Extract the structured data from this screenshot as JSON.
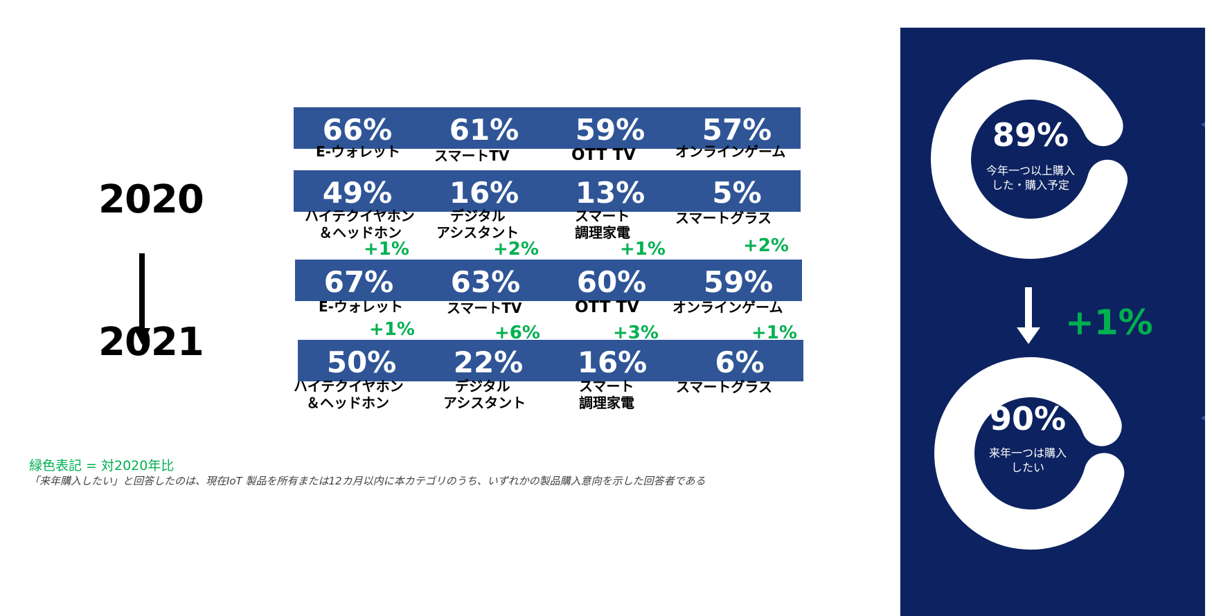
{
  "years": {
    "from": "2020",
    "to": "2021"
  },
  "tiles_2020": [
    {
      "pct": "66%",
      "label": [
        "E-ウォレット"
      ]
    },
    {
      "pct": "61%",
      "label": [
        "スマートTV"
      ]
    },
    {
      "pct": "59%",
      "label": [
        "OTT TV"
      ]
    },
    {
      "pct": "57%",
      "label": [
        "オンラインゲーム"
      ]
    },
    {
      "pct": "49%",
      "label": [
        "ハイテクイヤホン",
        "＆ヘッドホン"
      ]
    },
    {
      "pct": "16%",
      "label": [
        "デジタル",
        "アシスタント"
      ]
    },
    {
      "pct": "13%",
      "label": [
        "スマート",
        "調理家電"
      ]
    },
    {
      "pct": "5%",
      "label": [
        "スマートグラス"
      ]
    }
  ],
  "tiles_2021": [
    {
      "pct": "67%",
      "label": [
        "E-ウォレット"
      ],
      "delta": "+1%"
    },
    {
      "pct": "63%",
      "label": [
        "スマートTV"
      ],
      "delta": "+2%"
    },
    {
      "pct": "60%",
      "label": [
        "OTT TV"
      ],
      "delta": "+1%"
    },
    {
      "pct": "59%",
      "label": [
        "オンラインゲーム"
      ],
      "delta": "+2%"
    },
    {
      "pct": "50%",
      "label": [
        "ハイテクイヤホン",
        "＆ヘッドホン"
      ],
      "delta": "+1%"
    },
    {
      "pct": "22%",
      "label": [
        "デジタル",
        "アシスタント"
      ],
      "delta": "+6%"
    },
    {
      "pct": "16%",
      "label": [
        "スマート",
        "調理家電"
      ],
      "delta": "+3%"
    },
    {
      "pct": "6%",
      "label": [
        "スマートグラス"
      ],
      "delta": "+1%"
    }
  ],
  "notes": {
    "legend": "緑色表記 = 対2020年比",
    "footnote": "「来年購入したい」と回答したのは、現在IoT 製品を所有または12カ月以内に本カテゴリのうち、いずれかの製品購入意向を示した回答者である"
  },
  "panel": {
    "top_ring": {
      "pct": "89%",
      "value": 0.89,
      "label_lines": [
        "今年一つ以上購入",
        "した・購入予定"
      ]
    },
    "bottom_ring": {
      "pct": "90%",
      "value": 0.9,
      "label_lines": [
        "来年一つは購入",
        "したい"
      ]
    },
    "delta": "+1%"
  },
  "colors": {
    "tile": "#2f5597",
    "panel": "#0d2260",
    "green": "#00b050",
    "ring": "#ffffff"
  }
}
